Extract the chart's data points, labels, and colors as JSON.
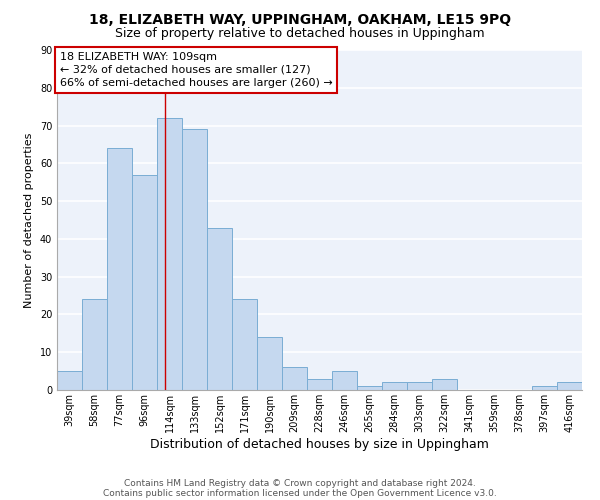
{
  "title1": "18, ELIZABETH WAY, UPPINGHAM, OAKHAM, LE15 9PQ",
  "title2": "Size of property relative to detached houses in Uppingham",
  "xlabel": "Distribution of detached houses by size in Uppingham",
  "ylabel": "Number of detached properties",
  "categories": [
    "39sqm",
    "58sqm",
    "77sqm",
    "96sqm",
    "114sqm",
    "133sqm",
    "152sqm",
    "171sqm",
    "190sqm",
    "209sqm",
    "228sqm",
    "246sqm",
    "265sqm",
    "284sqm",
    "303sqm",
    "322sqm",
    "341sqm",
    "359sqm",
    "378sqm",
    "397sqm",
    "416sqm"
  ],
  "values": [
    5,
    24,
    64,
    57,
    72,
    69,
    43,
    24,
    14,
    6,
    3,
    5,
    1,
    2,
    2,
    3,
    0,
    0,
    0,
    1,
    2
  ],
  "bar_color": "#c5d8ef",
  "bar_edge_color": "#7aadd4",
  "annotation_text": "18 ELIZABETH WAY: 109sqm\n← 32% of detached houses are smaller (127)\n66% of semi-detached houses are larger (260) →",
  "red_line_x": 3.82,
  "ylim": [
    0,
    90
  ],
  "yticks": [
    0,
    10,
    20,
    30,
    40,
    50,
    60,
    70,
    80,
    90
  ],
  "footer1": "Contains HM Land Registry data © Crown copyright and database right 2024.",
  "footer2": "Contains public sector information licensed under the Open Government Licence v3.0.",
  "background_color": "#edf2fa",
  "grid_color": "#ffffff",
  "title1_fontsize": 10,
  "title2_fontsize": 9,
  "xlabel_fontsize": 9,
  "ylabel_fontsize": 8,
  "tick_fontsize": 7,
  "footer_fontsize": 6.5,
  "annotation_fontsize": 8
}
